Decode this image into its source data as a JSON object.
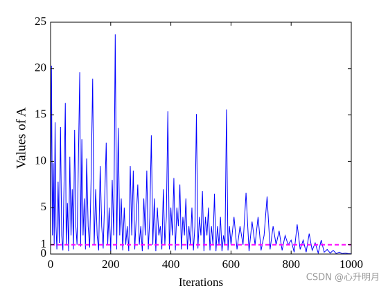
{
  "chart_data": {
    "type": "line",
    "xlabel": "Iterations",
    "ylabel": "Values of A",
    "x": [
      0,
      3,
      6,
      9,
      12,
      15,
      18,
      21,
      25,
      29,
      33,
      37,
      41,
      45,
      49,
      52,
      56,
      60,
      64,
      68,
      72,
      76,
      80,
      84,
      88,
      92,
      97,
      100,
      104,
      108,
      112,
      116,
      120,
      125,
      130,
      135,
      140,
      145,
      150,
      155,
      160,
      165,
      170,
      175,
      180,
      185,
      190,
      195,
      200,
      205,
      210,
      215,
      220,
      225,
      230,
      235,
      240,
      245,
      250,
      255,
      260,
      265,
      270,
      275,
      280,
      285,
      290,
      295,
      300,
      305,
      310,
      315,
      320,
      325,
      330,
      335,
      340,
      345,
      350,
      355,
      360,
      365,
      370,
      375,
      380,
      385,
      390,
      395,
      400,
      405,
      410,
      415,
      420,
      425,
      430,
      435,
      440,
      445,
      450,
      455,
      460,
      465,
      470,
      475,
      480,
      485,
      490,
      495,
      500,
      505,
      510,
      515,
      520,
      525,
      530,
      535,
      540,
      545,
      550,
      555,
      560,
      565,
      570,
      575,
      580,
      585,
      590,
      595,
      600,
      610,
      620,
      630,
      640,
      650,
      660,
      670,
      680,
      690,
      700,
      710,
      720,
      730,
      740,
      750,
      760,
      770,
      780,
      790,
      800,
      810,
      820,
      830,
      840,
      850,
      860,
      870,
      880,
      890,
      900,
      910,
      920,
      930,
      940,
      950,
      960,
      970,
      980,
      990,
      1000
    ],
    "series": [
      {
        "color": "#0000ff",
        "values": [
          0.5,
          20.3,
          2,
          9.8,
          1,
          14.2,
          3,
          0.5,
          7.8,
          1.2,
          13.7,
          2,
          0.4,
          8,
          16.3,
          1,
          5.5,
          0.3,
          10.5,
          2,
          7,
          0.5,
          13.4,
          3,
          1,
          9,
          19.6,
          0.8,
          12.4,
          2,
          6,
          0.5,
          10.3,
          3,
          0.7,
          8.5,
          18.9,
          1,
          7,
          2,
          0.4,
          9.5,
          3,
          0.6,
          6,
          12,
          1,
          5,
          0.3,
          8,
          2,
          23.7,
          0.5,
          13.6,
          2,
          6,
          0.4,
          5,
          1,
          3,
          0.3,
          9.5,
          2,
          9,
          0.5,
          4,
          7.5,
          1,
          3,
          0.3,
          6,
          2,
          9,
          0.5,
          4,
          12.8,
          1,
          6,
          0.3,
          5,
          2,
          3,
          0.5,
          7,
          1,
          4,
          15.4,
          0.5,
          5,
          2,
          8.2,
          0.4,
          5,
          3,
          7.5,
          0.5,
          4,
          2,
          6,
          0.5,
          3,
          1,
          5,
          0.4,
          3,
          15.1,
          0.6,
          4,
          2,
          6.8,
          0.3,
          4,
          2,
          5,
          0.4,
          3,
          1,
          6.5,
          0.3,
          3,
          1,
          4,
          0.3,
          2,
          1,
          15.6,
          0.4,
          3,
          1,
          4,
          0.5,
          3,
          1,
          6.6,
          0.3,
          3.5,
          1,
          4,
          0.4,
          2,
          6.2,
          0.5,
          3,
          1,
          2.5,
          0.4,
          2,
          1,
          1.5,
          0.2,
          3.2,
          0.5,
          1.5,
          0.2,
          2.2,
          0.4,
          1.2,
          0.1,
          1.5,
          0.2,
          0.5,
          0.1,
          0.4,
          0.05,
          0.2,
          0.05,
          0.1,
          0.05,
          0.02
        ]
      }
    ],
    "reference_line": {
      "value": 1,
      "color": "#ff00ff"
    },
    "xlim": [
      0,
      1000
    ],
    "xticks": [
      0,
      200,
      400,
      600,
      800,
      1000
    ],
    "ylim": [
      0,
      25
    ],
    "yticks": [
      0,
      1,
      5,
      10,
      15,
      20,
      25
    ],
    "watermark": "CSDN @心升明月"
  }
}
